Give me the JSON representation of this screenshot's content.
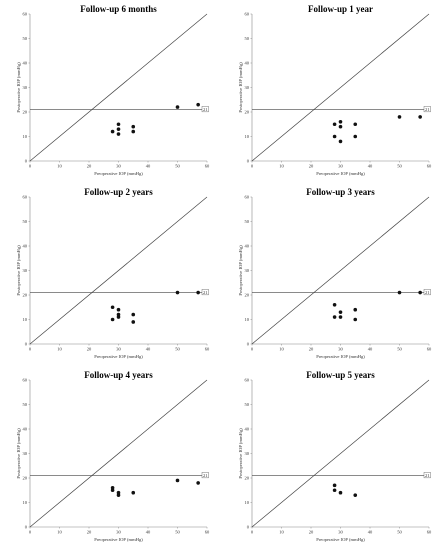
{
  "chart_data": [
    {
      "type": "scatter",
      "title": "Follow-up 6 months",
      "xlabel": "Preoperative IOP (mmHg)",
      "ylabel": "Postoperative IOP (mmHg)",
      "xlim": [
        0,
        60
      ],
      "ylim": [
        0,
        60
      ],
      "xticks": [
        "0",
        "10",
        "20",
        "30",
        "40",
        "50",
        "60"
      ],
      "yticks": [
        "0",
        "10",
        "20",
        "30",
        "40",
        "50",
        "60"
      ],
      "reference_line": {
        "y": 21,
        "label": "21"
      },
      "identity_line": true,
      "points": [
        {
          "x": 28,
          "y": 12
        },
        {
          "x": 30,
          "y": 11
        },
        {
          "x": 30,
          "y": 13
        },
        {
          "x": 30,
          "y": 15
        },
        {
          "x": 35,
          "y": 12
        },
        {
          "x": 35,
          "y": 14
        },
        {
          "x": 50,
          "y": 22
        },
        {
          "x": 57,
          "y": 23
        }
      ]
    },
    {
      "type": "scatter",
      "title": "Follow-up 1 year",
      "xlabel": "Preoperative IOP (mmHg)",
      "ylabel": "Postoperative IOP (mmHg)",
      "xlim": [
        0,
        60
      ],
      "ylim": [
        0,
        60
      ],
      "xticks": [
        "0",
        "10",
        "20",
        "30",
        "40",
        "50",
        "60"
      ],
      "yticks": [
        "0",
        "10",
        "20",
        "30",
        "40",
        "50",
        "60"
      ],
      "reference_line": {
        "y": 21,
        "label": "21"
      },
      "identity_line": true,
      "points": [
        {
          "x": 28,
          "y": 10
        },
        {
          "x": 28,
          "y": 15
        },
        {
          "x": 30,
          "y": 8
        },
        {
          "x": 30,
          "y": 14
        },
        {
          "x": 30,
          "y": 16
        },
        {
          "x": 35,
          "y": 10
        },
        {
          "x": 35,
          "y": 15
        },
        {
          "x": 50,
          "y": 18
        },
        {
          "x": 57,
          "y": 18
        }
      ]
    },
    {
      "type": "scatter",
      "title": "Follow-up 2 years",
      "xlabel": "Preoperative IOP (mmHg)",
      "ylabel": "Postoperative IOP (mmHg)",
      "xlim": [
        0,
        60
      ],
      "ylim": [
        0,
        60
      ],
      "xticks": [
        "0",
        "10",
        "20",
        "30",
        "40",
        "50",
        "60"
      ],
      "yticks": [
        "0",
        "10",
        "20",
        "30",
        "40",
        "50",
        "60"
      ],
      "reference_line": {
        "y": 21,
        "label": "21"
      },
      "identity_line": true,
      "points": [
        {
          "x": 28,
          "y": 10
        },
        {
          "x": 28,
          "y": 15
        },
        {
          "x": 30,
          "y": 11
        },
        {
          "x": 30,
          "y": 12
        },
        {
          "x": 30,
          "y": 14
        },
        {
          "x": 35,
          "y": 9
        },
        {
          "x": 35,
          "y": 12
        },
        {
          "x": 50,
          "y": 21
        },
        {
          "x": 57,
          "y": 21
        }
      ]
    },
    {
      "type": "scatter",
      "title": "Follow-up 3 years",
      "xlabel": "Preoperative IOP (mmHg)",
      "ylabel": "Postoperative IOP (mmHg)",
      "xlim": [
        0,
        60
      ],
      "ylim": [
        0,
        60
      ],
      "xticks": [
        "0",
        "10",
        "20",
        "30",
        "40",
        "50",
        "60"
      ],
      "yticks": [
        "0",
        "10",
        "20",
        "30",
        "40",
        "50",
        "60"
      ],
      "reference_line": {
        "y": 21,
        "label": "21"
      },
      "identity_line": true,
      "points": [
        {
          "x": 28,
          "y": 11
        },
        {
          "x": 28,
          "y": 16
        },
        {
          "x": 30,
          "y": 11
        },
        {
          "x": 30,
          "y": 13
        },
        {
          "x": 35,
          "y": 10
        },
        {
          "x": 35,
          "y": 14
        },
        {
          "x": 50,
          "y": 21
        },
        {
          "x": 57,
          "y": 21
        }
      ]
    },
    {
      "type": "scatter",
      "title": "Follow-up 4 years",
      "xlabel": "Preoperative IOP (mmHg)",
      "ylabel": "Postoperative IOP (mmHg)",
      "xlim": [
        0,
        60
      ],
      "ylim": [
        0,
        60
      ],
      "xticks": [
        "0",
        "10",
        "20",
        "30",
        "40",
        "50",
        "60"
      ],
      "yticks": [
        "0",
        "10",
        "20",
        "30",
        "40",
        "50",
        "60"
      ],
      "reference_line": {
        "y": 21,
        "label": "21"
      },
      "identity_line": true,
      "points": [
        {
          "x": 28,
          "y": 15
        },
        {
          "x": 28,
          "y": 16
        },
        {
          "x": 30,
          "y": 13
        },
        {
          "x": 30,
          "y": 14
        },
        {
          "x": 35,
          "y": 14
        },
        {
          "x": 50,
          "y": 19
        },
        {
          "x": 57,
          "y": 18
        }
      ]
    },
    {
      "type": "scatter",
      "title": "Follow-up 5 years",
      "xlabel": "Preoperative IOP (mmHg)",
      "ylabel": "Postoperative IOP (mmHg)",
      "xlim": [
        0,
        60
      ],
      "ylim": [
        0,
        60
      ],
      "xticks": [
        "0",
        "10",
        "20",
        "30",
        "40",
        "50",
        "60"
      ],
      "yticks": [
        "0",
        "10",
        "20",
        "30",
        "40",
        "50",
        "60"
      ],
      "reference_line": {
        "y": 21,
        "label": "21"
      },
      "identity_line": true,
      "points": [
        {
          "x": 28,
          "y": 15
        },
        {
          "x": 28,
          "y": 17
        },
        {
          "x": 30,
          "y": 14
        },
        {
          "x": 35,
          "y": 13
        }
      ]
    }
  ]
}
